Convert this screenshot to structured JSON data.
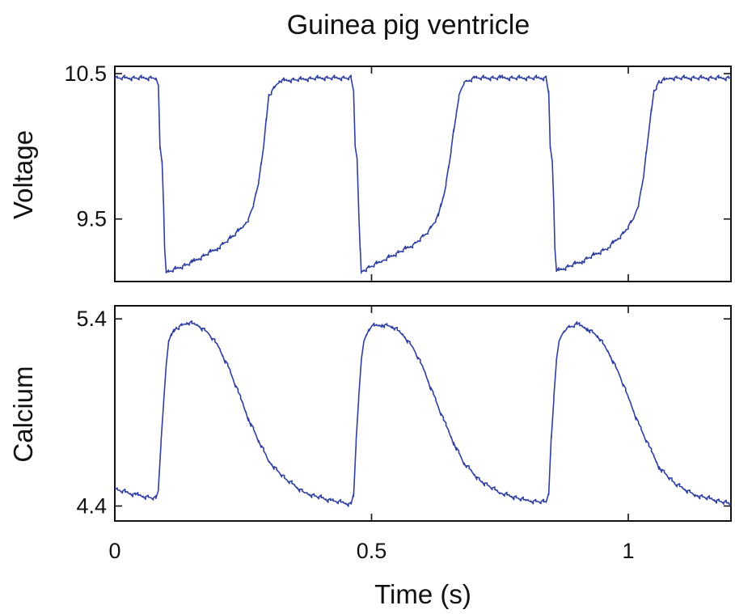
{
  "chart_data": {
    "type": "line",
    "title": "Guinea pig ventricle",
    "xlabel": "Time (s)",
    "xlim": [
      0,
      1.2
    ],
    "x_ticks": [
      {
        "value": 0,
        "label": "0"
      },
      {
        "value": 0.5,
        "label": "0.5"
      },
      {
        "value": 1,
        "label": "1"
      }
    ],
    "grid": false,
    "line_color": "#2f3fa0",
    "panels": [
      {
        "ylabel": "Voltage",
        "ylim": [
          9.07,
          10.55
        ],
        "y_ticks": [
          {
            "value": 9.5,
            "label": "9.5"
          },
          {
            "value": 10.5,
            "label": "10.5"
          }
        ],
        "series": [
          {
            "x": [
              0.0,
              0.08,
              0.085,
              0.088,
              0.092,
              0.095,
              0.097,
              0.1,
              0.15,
              0.2,
              0.23,
              0.25,
              0.26,
              0.27,
              0.28,
              0.29,
              0.3,
              0.32,
              0.4,
              0.46,
              0.465,
              0.468,
              0.472,
              0.475,
              0.478,
              0.48,
              0.52,
              0.58,
              0.61,
              0.63,
              0.64,
              0.65,
              0.66,
              0.67,
              0.68,
              0.7,
              0.75,
              0.84,
              0.845,
              0.848,
              0.852,
              0.855,
              0.857,
              0.86,
              0.91,
              0.96,
              0.99,
              1.01,
              1.02,
              1.03,
              1.04,
              1.05,
              1.06,
              1.08,
              1.2
            ],
            "y": [
              10.47,
              10.47,
              10.4,
              10.0,
              9.9,
              9.6,
              9.3,
              9.13,
              9.2,
              9.3,
              9.38,
              9.45,
              9.5,
              9.6,
              9.75,
              10.0,
              10.35,
              10.45,
              10.47,
              10.47,
              10.38,
              10.0,
              9.9,
              9.55,
              9.3,
              9.14,
              9.21,
              9.32,
              9.41,
              9.52,
              9.65,
              9.85,
              10.1,
              10.35,
              10.44,
              10.47,
              10.47,
              10.47,
              10.38,
              10.0,
              9.9,
              9.6,
              9.3,
              9.14,
              9.21,
              9.3,
              9.4,
              9.5,
              9.6,
              9.8,
              10.1,
              10.38,
              10.44,
              10.47,
              10.47
            ]
          }
        ]
      },
      {
        "ylabel": "Calcium",
        "ylim": [
          4.32,
          5.47
        ],
        "y_ticks": [
          {
            "value": 4.4,
            "label": "4.4"
          },
          {
            "value": 5.4,
            "label": "5.4"
          }
        ],
        "series": [
          {
            "x": [
              0.0,
              0.04,
              0.08,
              0.085,
              0.09,
              0.095,
              0.1,
              0.105,
              0.11,
              0.12,
              0.14,
              0.16,
              0.18,
              0.2,
              0.22,
              0.24,
              0.26,
              0.28,
              0.3,
              0.33,
              0.37,
              0.42,
              0.46,
              0.465,
              0.47,
              0.475,
              0.48,
              0.485,
              0.49,
              0.5,
              0.52,
              0.54,
              0.56,
              0.58,
              0.6,
              0.62,
              0.64,
              0.66,
              0.68,
              0.71,
              0.75,
              0.8,
              0.84,
              0.845,
              0.85,
              0.855,
              0.86,
              0.865,
              0.87,
              0.88,
              0.9,
              0.92,
              0.94,
              0.96,
              0.98,
              1.0,
              1.02,
              1.04,
              1.06,
              1.09,
              1.13,
              1.2
            ],
            "y": [
              4.49,
              4.46,
              4.44,
              4.5,
              4.75,
              4.95,
              5.15,
              5.28,
              5.31,
              5.35,
              5.38,
              5.37,
              5.33,
              5.26,
              5.15,
              5.01,
              4.87,
              4.75,
              4.64,
              4.55,
              4.47,
              4.43,
              4.41,
              4.45,
              4.75,
              4.98,
              5.18,
              5.28,
              5.31,
              5.36,
              5.37,
              5.36,
              5.32,
              5.25,
              5.14,
              5.0,
              4.86,
              4.74,
              4.63,
              4.54,
              4.47,
              4.43,
              4.42,
              4.46,
              4.76,
              4.98,
              5.18,
              5.28,
              5.31,
              5.35,
              5.37,
              5.35,
              5.31,
              5.23,
              5.12,
              4.98,
              4.84,
              4.72,
              4.61,
              4.52,
              4.46,
              4.41
            ]
          }
        ]
      }
    ]
  }
}
